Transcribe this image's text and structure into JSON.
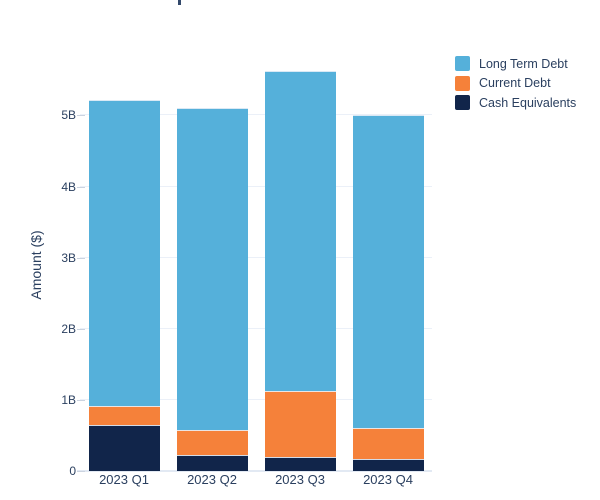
{
  "chart_data": {
    "type": "bar",
    "stacked": true,
    "categories": [
      "2023 Q1",
      "2023 Q2",
      "2023 Q3",
      "2023 Q4"
    ],
    "series": [
      {
        "name": "Long Term Debt",
        "color": "#55B0DA",
        "values": [
          4.3,
          4.54,
          4.51,
          4.4
        ]
      },
      {
        "name": "Current Debt",
        "color": "#F5813A",
        "values": [
          0.27,
          0.34,
          0.92,
          0.44
        ]
      },
      {
        "name": "Cash Equivalents",
        "color": "#11254A",
        "values": [
          0.65,
          0.23,
          0.2,
          0.17
        ]
      }
    ],
    "stack_order_bottom_to_top": [
      "Cash Equivalents",
      "Current Debt",
      "Long Term Debt"
    ],
    "totals": [
      5.22,
      5.11,
      5.63,
      5.01
    ],
    "value_unit_suffix": "B",
    "xlabel": "",
    "ylabel": "Amount ($)",
    "yticks": [
      {
        "value": 0,
        "label": "0"
      },
      {
        "value": 1,
        "label": "1B"
      },
      {
        "value": 2,
        "label": "2B"
      },
      {
        "value": 3,
        "label": "3B"
      },
      {
        "value": 4,
        "label": "4B"
      },
      {
        "value": 5,
        "label": "5B"
      }
    ],
    "ylim": [
      0,
      5.92
    ],
    "grid": true,
    "legend_position": "top-right-outside",
    "colors": {
      "text": "#2A3F5F",
      "gridline": "#EBF0F8",
      "axis_line": "#E2E9F3",
      "tick_mark": "#CBD3E0",
      "background": "#FFFFFF"
    }
  }
}
